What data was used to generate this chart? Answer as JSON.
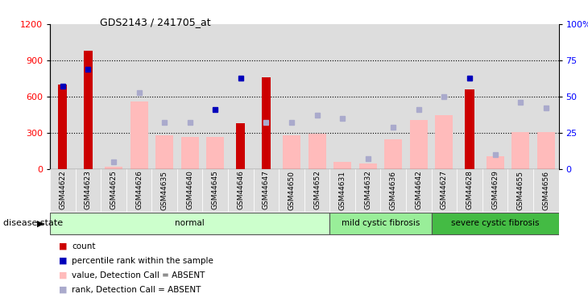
{
  "title": "GDS2143 / 241705_at",
  "samples": [
    "GSM44622",
    "GSM44623",
    "GSM44625",
    "GSM44626",
    "GSM44635",
    "GSM44640",
    "GSM44645",
    "GSM44646",
    "GSM44647",
    "GSM44650",
    "GSM44652",
    "GSM44631",
    "GSM44632",
    "GSM44636",
    "GSM44642",
    "GSM44627",
    "GSM44628",
    "GSM44629",
    "GSM44655",
    "GSM44656"
  ],
  "groups": [
    {
      "label": "normal",
      "start": 0,
      "end": 11,
      "color": "#ccffcc"
    },
    {
      "label": "mild cystic fibrosis",
      "start": 11,
      "end": 15,
      "color": "#99ee99"
    },
    {
      "label": "severe cystic fibrosis",
      "start": 15,
      "end": 20,
      "color": "#44bb44"
    }
  ],
  "count_values": [
    700,
    980,
    0,
    0,
    0,
    0,
    0,
    380,
    760,
    0,
    0,
    0,
    0,
    0,
    0,
    0,
    660,
    0,
    0,
    0
  ],
  "count_absent_values": [
    0,
    0,
    20,
    560,
    280,
    270,
    270,
    0,
    0,
    280,
    295,
    60,
    50,
    245,
    410,
    450,
    0,
    110,
    310,
    310
  ],
  "rank_values_pct": [
    57,
    69,
    0,
    0,
    0,
    0,
    41,
    63,
    0,
    0,
    0,
    0,
    0,
    0,
    0,
    0,
    63,
    0,
    0,
    0
  ],
  "rank_absent_values_pct": [
    0,
    0,
    5,
    53,
    32,
    32,
    0,
    0,
    32,
    32,
    37,
    35,
    7,
    29,
    41,
    50,
    0,
    10,
    46,
    42
  ],
  "ylim_left": [
    0,
    1200
  ],
  "ylim_right": [
    0,
    100
  ],
  "yticks_left": [
    0,
    300,
    600,
    900,
    1200
  ],
  "ytick_labels_left": [
    "0",
    "300",
    "600",
    "900",
    "1200"
  ],
  "yticks_right": [
    0,
    25,
    50,
    75,
    100
  ],
  "ytick_labels_right": [
    "0",
    "25",
    "50",
    "75",
    "100%"
  ],
  "colors": {
    "count": "#cc0000",
    "rank": "#0000bb",
    "count_absent": "#ffbbbb",
    "rank_absent": "#aaaacc",
    "col_bg": "#dddddd"
  },
  "legend_items": [
    {
      "label": "count",
      "color": "#cc0000"
    },
    {
      "label": "percentile rank within the sample",
      "color": "#0000bb"
    },
    {
      "label": "value, Detection Call = ABSENT",
      "color": "#ffbbbb"
    },
    {
      "label": "rank, Detection Call = ABSENT",
      "color": "#aaaacc"
    }
  ],
  "disease_state_label": "disease state"
}
